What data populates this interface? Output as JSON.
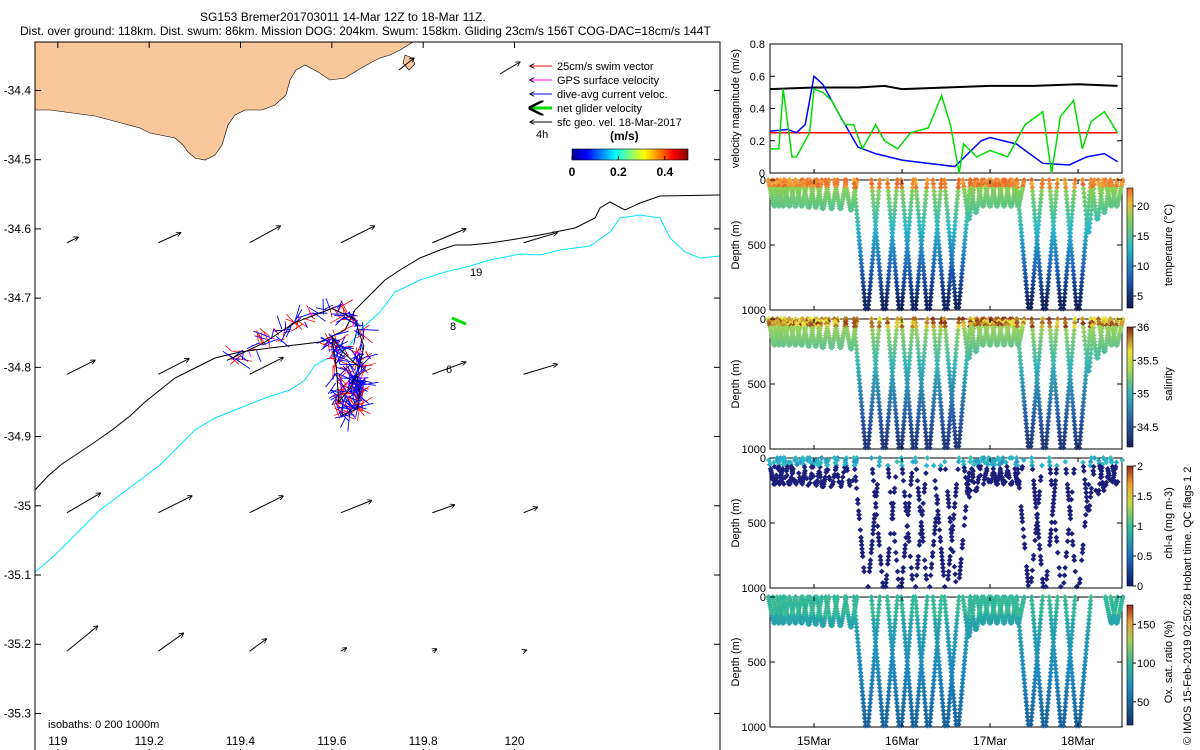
{
  "header": {
    "line1": "SG153 Bremer201703011 14-Mar 12Z to 18-Mar 11Z.",
    "line2": "Dist. over ground: 118km. Dist. swum: 86km. Mission DOG: 204km. Swum: 158km. Gliding 23cm/s 156T COG-DAC=18cm/s 144T"
  },
  "chart_data": [
    {
      "type": "map",
      "id": "track-map",
      "x_ticks": [
        "119",
        "119.2",
        "119.4",
        "119.6",
        "119.8",
        "120"
      ],
      "x_tick_values": [
        119,
        119.2,
        119.4,
        119.6,
        119.8,
        120
      ],
      "y_ticks": [
        "-34.4",
        "-34.5",
        "-34.6",
        "-34.7",
        "-34.8",
        "-34.9",
        "-35",
        "-35.1",
        "-35.2",
        "-35.3"
      ],
      "y_tick_values": [
        -34.4,
        -34.5,
        -34.6,
        -34.7,
        -34.8,
        -34.9,
        -35.0,
        -35.1,
        -35.2,
        -35.3
      ],
      "xlim": [
        118.95,
        120.45
      ],
      "ylim": [
        -35.36,
        -34.33
      ],
      "land_color": "#f9c799",
      "isobath_text": "isobaths: 0   200   1000m",
      "isobath_200_color": "#000000",
      "isobath_1000_color": "#00e5ff",
      "legend": [
        {
          "label": "25cm/s swim vector",
          "color": "#ff0000"
        },
        {
          "label": "GPS surface velocity",
          "color": "#ff00ff"
        },
        {
          "label": "dive-avg current veloc.",
          "color": "#0000ff"
        },
        {
          "label": "net glider velocity",
          "color": "#00dd00"
        },
        {
          "label": "sfc geo. vel. 18-Mar-2017",
          "color": "#000000"
        }
      ],
      "time_tick_label": "4h",
      "colorbar_title": "(m/s)",
      "colorbar_ticks": [
        "0",
        "0.2",
        "0.4"
      ],
      "colorbar_tick_values": [
        0,
        0.2,
        0.4
      ],
      "colorbar_range": [
        0,
        0.5
      ],
      "track_labels": [
        "19",
        "8",
        "6"
      ],
      "geostrophic_vectors": [
        {
          "lon": 119.02,
          "lat": -34.62,
          "u": 0.02,
          "v": 0.01
        },
        {
          "lon": 119.22,
          "lat": -34.62,
          "u": 0.04,
          "v": 0.018
        },
        {
          "lon": 119.42,
          "lat": -34.62,
          "u": 0.055,
          "v": 0.03
        },
        {
          "lon": 119.62,
          "lat": -34.62,
          "u": 0.06,
          "v": 0.03
        },
        {
          "lon": 119.82,
          "lat": -34.62,
          "u": 0.06,
          "v": 0.025
        },
        {
          "lon": 120.02,
          "lat": -34.62,
          "u": 0.06,
          "v": 0.018
        },
        {
          "lon": 119.02,
          "lat": -34.81,
          "u": 0.05,
          "v": 0.025
        },
        {
          "lon": 119.22,
          "lat": -34.81,
          "u": 0.055,
          "v": 0.028
        },
        {
          "lon": 119.42,
          "lat": -34.81,
          "u": 0.06,
          "v": 0.03
        },
        {
          "lon": 119.82,
          "lat": -34.81,
          "u": 0.06,
          "v": 0.022
        },
        {
          "lon": 120.02,
          "lat": -34.81,
          "u": 0.06,
          "v": 0.018
        },
        {
          "lon": 119.02,
          "lat": -35.01,
          "u": 0.06,
          "v": 0.035
        },
        {
          "lon": 119.22,
          "lat": -35.01,
          "u": 0.06,
          "v": 0.03
        },
        {
          "lon": 119.42,
          "lat": -35.01,
          "u": 0.06,
          "v": 0.03
        },
        {
          "lon": 119.62,
          "lat": -35.01,
          "u": 0.055,
          "v": 0.022
        },
        {
          "lon": 119.82,
          "lat": -35.01,
          "u": 0.04,
          "v": 0.014
        },
        {
          "lon": 120.02,
          "lat": -35.01,
          "u": 0.025,
          "v": 0.01
        },
        {
          "lon": 119.02,
          "lat": -35.21,
          "u": 0.055,
          "v": 0.045
        },
        {
          "lon": 119.22,
          "lat": -35.21,
          "u": 0.045,
          "v": 0.032
        },
        {
          "lon": 119.42,
          "lat": -35.21,
          "u": 0.03,
          "v": 0.022
        },
        {
          "lon": 119.62,
          "lat": -35.21,
          "u": 0.01,
          "v": 0.006
        },
        {
          "lon": 119.82,
          "lat": -35.21,
          "u": 0.008,
          "v": 0.004
        },
        {
          "lon": 120.02,
          "lat": -35.21,
          "u": 0.005,
          "v": 0.002
        }
      ],
      "glider_track": [
        [
          119.37,
          -34.79
        ],
        [
          119.45,
          -34.765
        ],
        [
          119.52,
          -34.735
        ],
        [
          119.6,
          -34.715
        ],
        [
          119.65,
          -34.73
        ],
        [
          119.67,
          -34.77
        ],
        [
          119.66,
          -34.8
        ],
        [
          119.62,
          -34.775
        ],
        [
          119.6,
          -34.755
        ],
        [
          119.61,
          -34.8
        ],
        [
          119.615,
          -34.85
        ],
        [
          119.64,
          -34.83
        ],
        [
          119.655,
          -34.81
        ],
        [
          119.66,
          -34.84
        ],
        [
          119.655,
          -34.86
        ],
        [
          119.62,
          -34.87
        ]
      ]
    },
    {
      "type": "line",
      "id": "velocity-magnitude",
      "ylabel": "velocity magnitude (m/s)",
      "ylim": [
        0,
        0.8
      ],
      "y_ticks": [
        0,
        0.2,
        0.4,
        0.6,
        0.8
      ],
      "y_tick_labels": [
        "0",
        "0.2",
        "0.4",
        "0.6",
        "0.8"
      ],
      "xlim": [
        14.5,
        18.5
      ],
      "series": [
        {
          "name": "black",
          "color": "#000000",
          "x": [
            14.5,
            15.0,
            15.5,
            15.8,
            16.0,
            16.5,
            17.0,
            17.5,
            18.0,
            18.45
          ],
          "values": [
            0.52,
            0.53,
            0.53,
            0.54,
            0.52,
            0.53,
            0.54,
            0.54,
            0.55,
            0.54
          ]
        },
        {
          "name": "red",
          "color": "#ff0000",
          "x": [
            14.5,
            18.45
          ],
          "values": [
            0.25,
            0.25
          ]
        },
        {
          "name": "blue",
          "color": "#0000ff",
          "x": [
            14.5,
            14.7,
            14.8,
            14.9,
            15.0,
            15.1,
            15.3,
            15.5,
            15.7,
            16.0,
            16.3,
            16.6,
            16.9,
            17.0,
            17.3,
            17.6,
            17.9,
            18.1,
            18.3,
            18.45
          ],
          "values": [
            0.26,
            0.27,
            0.25,
            0.3,
            0.6,
            0.55,
            0.35,
            0.16,
            0.12,
            0.08,
            0.06,
            0.04,
            0.2,
            0.22,
            0.18,
            0.06,
            0.05,
            0.1,
            0.12,
            0.07
          ]
        },
        {
          "name": "green",
          "color": "#00dd00",
          "x": [
            14.5,
            14.6,
            14.65,
            14.75,
            14.8,
            14.95,
            15.0,
            15.1,
            15.2,
            15.35,
            15.45,
            15.55,
            15.7,
            15.8,
            15.95,
            16.1,
            16.3,
            16.45,
            16.55,
            16.65,
            16.7,
            16.85,
            17.0,
            17.2,
            17.4,
            17.6,
            17.7,
            17.8,
            17.95,
            18.05,
            18.15,
            18.3,
            18.45
          ],
          "values": [
            0.15,
            0.15,
            0.52,
            0.1,
            0.1,
            0.25,
            0.52,
            0.5,
            0.45,
            0.3,
            0.3,
            0.15,
            0.3,
            0.2,
            0.15,
            0.25,
            0.28,
            0.48,
            0.3,
            0.0,
            0.18,
            0.1,
            0.14,
            0.1,
            0.3,
            0.38,
            0.0,
            0.35,
            0.45,
            0.15,
            0.32,
            0.38,
            0.25
          ]
        }
      ]
    },
    {
      "type": "scatter",
      "id": "temperature",
      "ylabel": "Depth (m)",
      "clabel": "temperature (°C)",
      "ylim": [
        0,
        1000
      ],
      "y_ticks": [
        0,
        500,
        1000
      ],
      "c_range": [
        3,
        23
      ],
      "c_ticks": [
        5,
        10,
        15,
        20
      ],
      "c_tick_labels": [
        "5",
        "10",
        "15",
        "20"
      ],
      "x_day_ticks": [
        "15Mar",
        "16Mar",
        "17Mar",
        "18Mar"
      ],
      "x_day_values": [
        15,
        16,
        17,
        18
      ]
    },
    {
      "type": "scatter",
      "id": "salinity",
      "ylabel": "Depth (m)",
      "clabel": "salinity",
      "ylim": [
        0,
        1000
      ],
      "y_ticks": [
        0,
        500,
        1000
      ],
      "c_range": [
        34.2,
        36.0
      ],
      "c_ticks": [
        34.5,
        35,
        35.5,
        36
      ],
      "c_tick_labels": [
        "34.5",
        "35",
        "35.5",
        "36"
      ]
    },
    {
      "type": "scatter",
      "id": "chlorophyll",
      "ylabel": "Depth (m)",
      "clabel": "chl-a (mg m-3)",
      "ylim": [
        0,
        1000
      ],
      "y_ticks": [
        0,
        500,
        1000
      ],
      "c_range": [
        0,
        2
      ],
      "c_ticks": [
        0,
        0.5,
        1,
        1.5,
        2
      ],
      "c_tick_labels": [
        "0",
        "0.5",
        "1",
        "1.5",
        "2"
      ]
    },
    {
      "type": "scatter",
      "id": "oxygen",
      "ylabel": "Depth (m)",
      "clabel": "Ox. sat. ratio (%)",
      "ylim": [
        0,
        1000
      ],
      "y_ticks": [
        0,
        500,
        1000
      ],
      "c_range": [
        20,
        175
      ],
      "c_ticks": [
        50,
        100,
        150
      ],
      "c_tick_labels": [
        "50",
        "100",
        "150"
      ]
    }
  ],
  "side_note": "© IMOS 15-Feb-2019 02:50:28 Hobart time. QC flags 1  2",
  "dive_profiles": {
    "xlim": [
      14.5,
      18.5
    ],
    "dives": [
      {
        "t": 14.55,
        "depth": 200
      },
      {
        "t": 14.6,
        "depth": 200
      },
      {
        "t": 14.65,
        "depth": 200
      },
      {
        "t": 14.72,
        "depth": 200
      },
      {
        "t": 14.79,
        "depth": 200
      },
      {
        "t": 14.86,
        "depth": 200
      },
      {
        "t": 14.94,
        "depth": 210
      },
      {
        "t": 15.02,
        "depth": 210
      },
      {
        "t": 15.1,
        "depth": 220
      },
      {
        "t": 15.2,
        "depth": 220
      },
      {
        "t": 15.3,
        "depth": 220
      },
      {
        "t": 15.42,
        "depth": 230
      },
      {
        "t": 15.6,
        "depth": 990
      },
      {
        "t": 15.8,
        "depth": 990
      },
      {
        "t": 15.98,
        "depth": 990
      },
      {
        "t": 16.14,
        "depth": 990
      },
      {
        "t": 16.3,
        "depth": 990
      },
      {
        "t": 16.5,
        "depth": 990
      },
      {
        "t": 16.63,
        "depth": 980
      },
      {
        "t": 16.76,
        "depth": 300
      },
      {
        "t": 16.84,
        "depth": 250
      },
      {
        "t": 16.92,
        "depth": 200
      },
      {
        "t": 17.0,
        "depth": 200
      },
      {
        "t": 17.08,
        "depth": 200
      },
      {
        "t": 17.16,
        "depth": 200
      },
      {
        "t": 17.24,
        "depth": 200
      },
      {
        "t": 17.32,
        "depth": 200
      },
      {
        "t": 17.45,
        "depth": 980
      },
      {
        "t": 17.62,
        "depth": 990
      },
      {
        "t": 17.82,
        "depth": 990
      },
      {
        "t": 18.0,
        "depth": 990
      },
      {
        "t": 18.12,
        "depth": 400
      },
      {
        "t": 18.22,
        "depth": 300
      },
      {
        "t": 18.3,
        "depth": 250
      },
      {
        "t": 18.38,
        "depth": 200
      },
      {
        "t": 18.44,
        "depth": 200
      }
    ]
  }
}
